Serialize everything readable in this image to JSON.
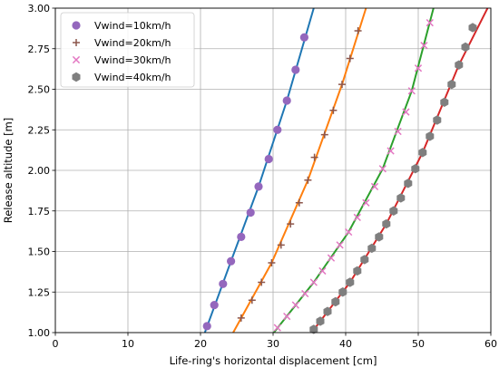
{
  "chart_data": {
    "type": "scatter",
    "xlabel": "Life-ring's horizontal displacement [cm]",
    "ylabel": "Release altitude [m]",
    "xlim": [
      0,
      60
    ],
    "ylim": [
      1.0,
      3.0
    ],
    "x_ticks": [
      0,
      10,
      20,
      30,
      40,
      50,
      60
    ],
    "x_tick_labels": [
      "0",
      "10",
      "20",
      "30",
      "40",
      "50",
      "60"
    ],
    "y_ticks": [
      1.0,
      1.25,
      1.5,
      1.75,
      2.0,
      2.25,
      2.5,
      2.75,
      3.0
    ],
    "y_tick_labels": [
      "1.00",
      "1.25",
      "1.50",
      "1.75",
      "2.00",
      "2.25",
      "2.50",
      "2.75",
      "3.00"
    ],
    "grid": true,
    "legend_position": "top-left",
    "series": [
      {
        "name": "Vwind=10km/h",
        "marker": "circle",
        "marker_color": "#9467bd",
        "line_color": "#1f77b4",
        "points": [
          {
            "x": 20.9,
            "y": 1.04
          },
          {
            "x": 21.9,
            "y": 1.17
          },
          {
            "x": 23.1,
            "y": 1.3
          },
          {
            "x": 24.2,
            "y": 1.44
          },
          {
            "x": 25.6,
            "y": 1.59
          },
          {
            "x": 26.9,
            "y": 1.74
          },
          {
            "x": 28.0,
            "y": 1.9
          },
          {
            "x": 29.4,
            "y": 2.07
          },
          {
            "x": 30.6,
            "y": 2.25
          },
          {
            "x": 31.9,
            "y": 2.43
          },
          {
            "x": 33.1,
            "y": 2.62
          },
          {
            "x": 34.3,
            "y": 2.82
          }
        ],
        "line": [
          {
            "x": 20.6,
            "y": 1.0
          },
          {
            "x": 24.2,
            "y": 1.44
          },
          {
            "x": 28.0,
            "y": 1.9
          },
          {
            "x": 31.9,
            "y": 2.43
          },
          {
            "x": 35.6,
            "y": 3.0
          }
        ]
      },
      {
        "name": "Vwind=20km/h",
        "marker": "plus",
        "marker_color": "#8c564b",
        "line_color": "#ff7f0e",
        "points": [
          {
            "x": 25.6,
            "y": 1.09
          },
          {
            "x": 27.1,
            "y": 1.2
          },
          {
            "x": 28.4,
            "y": 1.31
          },
          {
            "x": 29.8,
            "y": 1.43
          },
          {
            "x": 31.1,
            "y": 1.54
          },
          {
            "x": 32.4,
            "y": 1.67
          },
          {
            "x": 33.6,
            "y": 1.8
          },
          {
            "x": 34.8,
            "y": 1.94
          },
          {
            "x": 35.7,
            "y": 2.08
          },
          {
            "x": 37.1,
            "y": 2.22
          },
          {
            "x": 38.3,
            "y": 2.37
          },
          {
            "x": 39.5,
            "y": 2.53
          },
          {
            "x": 40.6,
            "y": 2.69
          },
          {
            "x": 41.7,
            "y": 2.86
          }
        ],
        "line": [
          {
            "x": 24.5,
            "y": 1.0
          },
          {
            "x": 29.8,
            "y": 1.43
          },
          {
            "x": 34.8,
            "y": 1.94
          },
          {
            "x": 39.5,
            "y": 2.53
          },
          {
            "x": 42.8,
            "y": 3.0
          }
        ]
      },
      {
        "name": "Vwind=30km/h",
        "marker": "x",
        "marker_color": "#e377c2",
        "line_color": "#2ca02c",
        "points": [
          {
            "x": 30.6,
            "y": 1.03
          },
          {
            "x": 31.9,
            "y": 1.1
          },
          {
            "x": 33.1,
            "y": 1.17
          },
          {
            "x": 34.4,
            "y": 1.24
          },
          {
            "x": 35.6,
            "y": 1.31
          },
          {
            "x": 36.8,
            "y": 1.38
          },
          {
            "x": 38.0,
            "y": 1.46
          },
          {
            "x": 39.2,
            "y": 1.54
          },
          {
            "x": 40.4,
            "y": 1.62
          },
          {
            "x": 41.6,
            "y": 1.71
          },
          {
            "x": 42.8,
            "y": 1.8
          },
          {
            "x": 44.0,
            "y": 1.9
          },
          {
            "x": 45.1,
            "y": 2.01
          },
          {
            "x": 46.2,
            "y": 2.12
          },
          {
            "x": 47.2,
            "y": 2.24
          },
          {
            "x": 48.3,
            "y": 2.36
          },
          {
            "x": 49.1,
            "y": 2.49
          },
          {
            "x": 50.0,
            "y": 2.63
          },
          {
            "x": 50.8,
            "y": 2.77
          },
          {
            "x": 51.6,
            "y": 2.91
          }
        ],
        "line": [
          {
            "x": 30.1,
            "y": 1.0
          },
          {
            "x": 35.6,
            "y": 1.31
          },
          {
            "x": 40.4,
            "y": 1.62
          },
          {
            "x": 45.1,
            "y": 2.01
          },
          {
            "x": 49.1,
            "y": 2.49
          },
          {
            "x": 52.1,
            "y": 3.0
          }
        ]
      },
      {
        "name": "Vwind=40km/h",
        "marker": "hexagon",
        "marker_color": "#7f7f7f",
        "line_color": "#d62728",
        "points": [
          {
            "x": 35.6,
            "y": 1.02
          },
          {
            "x": 36.5,
            "y": 1.07
          },
          {
            "x": 37.5,
            "y": 1.13
          },
          {
            "x": 38.6,
            "y": 1.19
          },
          {
            "x": 39.6,
            "y": 1.25
          },
          {
            "x": 40.6,
            "y": 1.31
          },
          {
            "x": 41.6,
            "y": 1.38
          },
          {
            "x": 42.6,
            "y": 1.45
          },
          {
            "x": 43.6,
            "y": 1.52
          },
          {
            "x": 44.6,
            "y": 1.59
          },
          {
            "x": 45.6,
            "y": 1.67
          },
          {
            "x": 46.6,
            "y": 1.75
          },
          {
            "x": 47.6,
            "y": 1.83
          },
          {
            "x": 48.6,
            "y": 1.92
          },
          {
            "x": 49.6,
            "y": 2.01
          },
          {
            "x": 50.6,
            "y": 2.11
          },
          {
            "x": 51.6,
            "y": 2.21
          },
          {
            "x": 52.6,
            "y": 2.31
          },
          {
            "x": 53.6,
            "y": 2.42
          },
          {
            "x": 54.6,
            "y": 2.53
          },
          {
            "x": 55.6,
            "y": 2.65
          },
          {
            "x": 56.5,
            "y": 2.76
          },
          {
            "x": 57.5,
            "y": 2.88
          }
        ],
        "line": [
          {
            "x": 35.3,
            "y": 1.0
          },
          {
            "x": 40.6,
            "y": 1.31
          },
          {
            "x": 45.6,
            "y": 1.67
          },
          {
            "x": 50.6,
            "y": 2.11
          },
          {
            "x": 55.6,
            "y": 2.65
          },
          {
            "x": 60.0,
            "y": 3.04
          }
        ]
      }
    ]
  }
}
